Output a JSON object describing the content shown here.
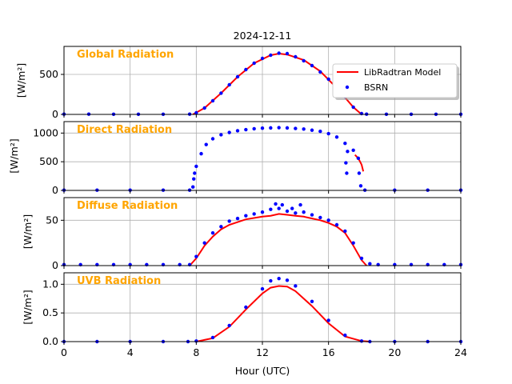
{
  "title": "2024-12-11",
  "xlabel": "Hour (UTC)",
  "xlim": [
    0,
    24
  ],
  "xticks": [
    0,
    4,
    8,
    12,
    16,
    20,
    24
  ],
  "legend": {
    "placement": "top-right of first panel",
    "model_label": "LibRadtran Model",
    "obs_label": "BSRN"
  },
  "colors": {
    "model": "#ff0000",
    "obs": "#0000ff",
    "panel_title": "#ffa500",
    "grid": "#b0b0b0"
  },
  "chart_data": [
    {
      "type": "scatter",
      "panel_title": "Global Radiation",
      "ylabel": "[W/m²]",
      "ylim": [
        0,
        850
      ],
      "yticks": [
        0,
        500
      ],
      "series": [
        {
          "name": "LibRadtran Model",
          "kind": "line",
          "x": [
            7.8,
            8.5,
            9.5,
            10.5,
            11.5,
            12.5,
            13.0,
            13.5,
            14.5,
            15.5,
            16.5,
            17.5,
            18.0
          ],
          "y": [
            0,
            80,
            265,
            470,
            640,
            740,
            760,
            748,
            680,
            540,
            330,
            90,
            0
          ]
        },
        {
          "name": "BSRN",
          "kind": "points",
          "x": [
            0,
            1.5,
            3,
            4.5,
            6,
            7.6,
            8.0,
            8.5,
            9.0,
            9.5,
            10.0,
            10.5,
            11.0,
            11.5,
            12.0,
            12.5,
            13.0,
            13.5,
            14.0,
            14.5,
            15.0,
            15.5,
            16.0,
            16.5,
            17.0,
            17.5,
            18.0,
            18.3,
            19.5,
            21,
            22.5,
            24
          ],
          "y": [
            3,
            3,
            2,
            2,
            2,
            3,
            20,
            80,
            170,
            265,
            370,
            470,
            560,
            640,
            700,
            740,
            765,
            760,
            720,
            670,
            610,
            530,
            440,
            330,
            220,
            90,
            10,
            3,
            2,
            2,
            2,
            2
          ]
        }
      ]
    },
    {
      "type": "scatter",
      "panel_title": "Direct Radiation",
      "ylabel": "[W/m²]",
      "ylim": [
        0,
        1200
      ],
      "yticks": [
        0,
        500,
        1000
      ],
      "series": [
        {
          "name": "LibRadtran Model",
          "kind": "line",
          "x": [
            17.6,
            17.8,
            18.0,
            18.1
          ],
          "y": [
            620,
            560,
            450,
            330
          ]
        },
        {
          "name": "BSRN",
          "kind": "points",
          "x": [
            0,
            2,
            4,
            6,
            7.6,
            7.8,
            7.85,
            7.9,
            8.0,
            8.3,
            8.6,
            9.0,
            9.5,
            10.0,
            10.5,
            11.0,
            11.5,
            12.0,
            12.5,
            13.0,
            13.5,
            14.0,
            14.5,
            15.0,
            15.5,
            16.0,
            16.5,
            17.0,
            17.05,
            17.1,
            17.15,
            17.5,
            17.8,
            17.85,
            17.95,
            18.2,
            20,
            22,
            24
          ],
          "y": [
            5,
            5,
            5,
            5,
            5,
            60,
            200,
            300,
            420,
            640,
            800,
            900,
            970,
            1010,
            1040,
            1060,
            1075,
            1085,
            1090,
            1095,
            1090,
            1080,
            1070,
            1050,
            1030,
            990,
            930,
            820,
            480,
            300,
            680,
            700,
            560,
            300,
            80,
            5,
            5,
            5,
            5
          ]
        }
      ]
    },
    {
      "type": "scatter",
      "panel_title": "Diffuse Radiation",
      "ylabel": "[W/m²]",
      "ylim": [
        0,
        75
      ],
      "yticks": [
        0,
        50
      ],
      "series": [
        {
          "name": "LibRadtran Model",
          "kind": "line",
          "x": [
            7.6,
            8.0,
            8.5,
            9.0,
            9.5,
            10.0,
            11.0,
            12.0,
            12.5,
            13.0,
            13.5,
            14.0,
            14.5,
            15.0,
            15.5,
            16.0,
            16.5,
            17.0,
            17.5,
            18.0,
            18.3
          ],
          "y": [
            0,
            8,
            22,
            32,
            40,
            45,
            51,
            54,
            55,
            57,
            56,
            55,
            54,
            52,
            50,
            47,
            43,
            36,
            22,
            6,
            0
          ]
        },
        {
          "name": "BSRN",
          "kind": "points",
          "x": [
            0,
            1,
            2,
            3,
            4,
            5,
            6,
            7,
            7.6,
            8.0,
            8.5,
            9.0,
            9.5,
            10.0,
            10.5,
            11.0,
            11.5,
            12.0,
            12.5,
            12.8,
            13.0,
            13.2,
            13.5,
            13.8,
            14.0,
            14.3,
            14.5,
            15.0,
            15.5,
            16.0,
            16.5,
            17.0,
            17.5,
            18.0,
            18.5,
            19,
            20,
            21,
            22,
            23,
            24
          ],
          "y": [
            1,
            1,
            1,
            1,
            1,
            1,
            1,
            1,
            1,
            10,
            25,
            36,
            43,
            49,
            52,
            55,
            57,
            59,
            62,
            68,
            63,
            67,
            60,
            63,
            58,
            67,
            59,
            56,
            53,
            50,
            45,
            38,
            25,
            8,
            2,
            1,
            1,
            1,
            1,
            1,
            1
          ]
        }
      ]
    },
    {
      "type": "scatter",
      "panel_title": "UVB Radiation",
      "ylabel": "[W/m²]",
      "ylim": [
        0,
        1.2
      ],
      "yticks": [
        0.0,
        0.5,
        1.0
      ],
      "series": [
        {
          "name": "LibRadtran Model",
          "kind": "line",
          "x": [
            8.0,
            9.0,
            10.0,
            11.0,
            12.0,
            12.5,
            13.0,
            13.5,
            14.0,
            15.0,
            16.0,
            17.0,
            18.0,
            18.5
          ],
          "y": [
            0.0,
            0.06,
            0.26,
            0.56,
            0.84,
            0.94,
            0.97,
            0.96,
            0.88,
            0.62,
            0.32,
            0.09,
            0.01,
            0.0
          ]
        },
        {
          "name": "BSRN",
          "kind": "points",
          "x": [
            0,
            2,
            4,
            6,
            7.5,
            8.0,
            9.0,
            10.0,
            11.0,
            12.0,
            12.5,
            13.0,
            13.5,
            14.0,
            15.0,
            16.0,
            17.0,
            18.0,
            18.5,
            20,
            22,
            24
          ],
          "y": [
            0,
            0,
            0,
            0,
            0,
            0.01,
            0.07,
            0.28,
            0.6,
            0.92,
            1.06,
            1.1,
            1.07,
            0.97,
            0.7,
            0.37,
            0.11,
            0.01,
            0,
            0,
            0,
            0
          ]
        }
      ]
    }
  ]
}
